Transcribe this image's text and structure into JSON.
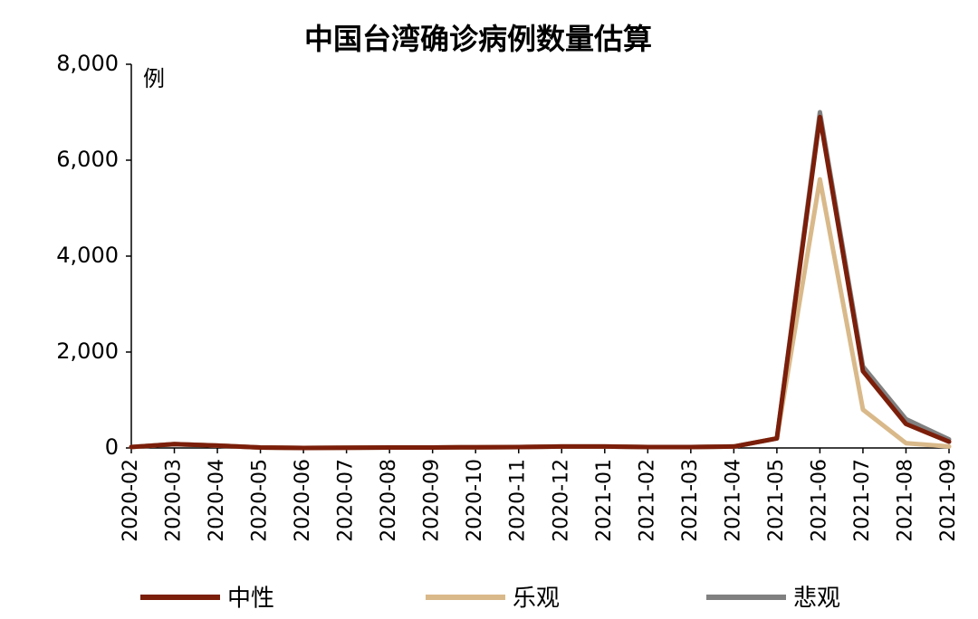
{
  "chart_data": {
    "type": "line",
    "title": "中国台湾确诊病例数量估算",
    "y_unit": "例",
    "categories": [
      "2020-02",
      "2020-03",
      "2020-04",
      "2020-05",
      "2020-06",
      "2020-07",
      "2020-08",
      "2020-09",
      "2020-10",
      "2020-11",
      "2020-12",
      "2021-01",
      "2021-02",
      "2021-03",
      "2021-04",
      "2021-05",
      "2021-06",
      "2021-07",
      "2021-08",
      "2021-09"
    ],
    "series": [
      {
        "name": "悲观",
        "color": "#808080",
        "values": [
          20,
          80,
          50,
          10,
          0,
          5,
          10,
          10,
          15,
          20,
          30,
          30,
          20,
          20,
          30,
          200,
          7000,
          1700,
          600,
          180
        ]
      },
      {
        "name": "乐观",
        "color": "#d9b98a",
        "values": [
          20,
          80,
          50,
          10,
          0,
          5,
          10,
          10,
          15,
          20,
          30,
          30,
          20,
          20,
          30,
          200,
          5600,
          800,
          100,
          30
        ]
      },
      {
        "name": "中性",
        "color": "#7b1e0a",
        "values": [
          20,
          80,
          50,
          10,
          0,
          5,
          10,
          10,
          15,
          20,
          30,
          30,
          20,
          20,
          30,
          200,
          6900,
          1600,
          500,
          130
        ]
      }
    ],
    "legend_order": [
      "中性",
      "乐观",
      "悲观"
    ],
    "ylim": [
      0,
      8000
    ],
    "yticks": [
      0,
      {
        "value": 2000,
        "label": "2,000"
      },
      {
        "value": 4000,
        "label": "4,000"
      },
      {
        "value": 6000,
        "label": "6,000"
      },
      {
        "value": 8000,
        "label": "8,000"
      }
    ],
    "grid": false
  }
}
